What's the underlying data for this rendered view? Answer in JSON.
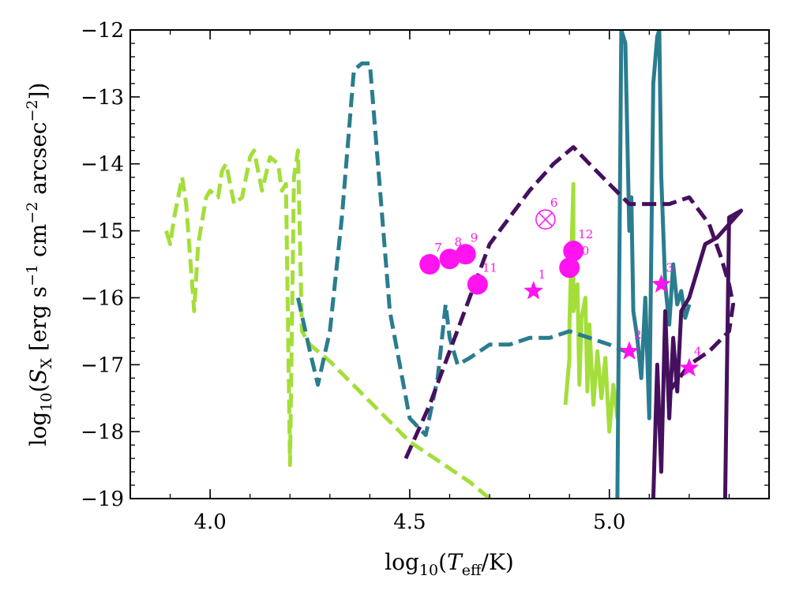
{
  "chart_data": {
    "type": "line",
    "xlabel": "log10(Teff/K)",
    "ylabel": "log10(SX [erg s−1 cm−2 arcsec−2])",
    "xlim": [
      3.8,
      5.4
    ],
    "ylim": [
      -19,
      -12
    ],
    "xticks": [
      {
        "value": 4.0,
        "label": "4.0"
      },
      {
        "value": 4.5,
        "label": "4.5"
      },
      {
        "value": 5.0,
        "label": "5.0"
      }
    ],
    "yticks": [
      {
        "value": -12,
        "label": "−12"
      },
      {
        "value": -13,
        "label": "−13"
      },
      {
        "value": -14,
        "label": "−14"
      },
      {
        "value": -15,
        "label": "−15"
      },
      {
        "value": -16,
        "label": "−16"
      },
      {
        "value": -17,
        "label": "−17"
      },
      {
        "value": -18,
        "label": "−18"
      },
      {
        "value": -19,
        "label": "−19"
      }
    ],
    "colors": {
      "lime": "#a4de3a",
      "teal": "#2a7d8e",
      "purple": "#45105e",
      "magenta": "#ff14f0"
    },
    "series": [
      {
        "name": "lime-dashed",
        "color": "#a4de3a",
        "style": "dashed",
        "points": [
          [
            3.89,
            -15.0
          ],
          [
            3.9,
            -15.2
          ],
          [
            3.91,
            -14.8
          ],
          [
            3.92,
            -14.5
          ],
          [
            3.93,
            -14.2
          ],
          [
            3.94,
            -14.6
          ],
          [
            3.96,
            -16.2
          ],
          [
            3.97,
            -15.2
          ],
          [
            3.99,
            -14.5
          ],
          [
            4.0,
            -14.4
          ],
          [
            4.02,
            -14.5
          ],
          [
            4.03,
            -14.1
          ],
          [
            4.04,
            -14.0
          ],
          [
            4.06,
            -14.6
          ],
          [
            4.08,
            -14.5
          ],
          [
            4.1,
            -13.9
          ],
          [
            4.11,
            -13.8
          ],
          [
            4.13,
            -14.4
          ],
          [
            4.15,
            -13.9
          ],
          [
            4.17,
            -14.0
          ],
          [
            4.18,
            -14.4
          ],
          [
            4.19,
            -14.3
          ],
          [
            4.2,
            -18.5
          ],
          [
            4.21,
            -14.2
          ],
          [
            4.22,
            -13.8
          ],
          [
            4.23,
            -16.5
          ],
          [
            4.25,
            -16.7
          ],
          [
            4.3,
            -16.95
          ],
          [
            4.35,
            -17.25
          ],
          [
            4.4,
            -17.55
          ],
          [
            4.45,
            -17.85
          ],
          [
            4.5,
            -18.15
          ],
          [
            4.55,
            -18.35
          ],
          [
            4.6,
            -18.55
          ],
          [
            4.65,
            -18.75
          ],
          [
            4.7,
            -19.0
          ]
        ]
      },
      {
        "name": "lime-solid",
        "color": "#a4de3a",
        "style": "solid",
        "points": [
          [
            4.89,
            -17.6
          ],
          [
            4.9,
            -16.9
          ],
          [
            4.9,
            -16.4
          ],
          [
            4.91,
            -14.3
          ],
          [
            4.91,
            -16.2
          ],
          [
            4.92,
            -15.8
          ],
          [
            4.925,
            -17.3
          ],
          [
            4.93,
            -16.3
          ],
          [
            4.94,
            -16.0
          ],
          [
            4.945,
            -17.4
          ],
          [
            4.95,
            -16.4
          ],
          [
            4.96,
            -17.6
          ],
          [
            4.97,
            -16.8
          ],
          [
            4.98,
            -17.5
          ],
          [
            4.99,
            -16.9
          ],
          [
            5.0,
            -18.0
          ],
          [
            5.01,
            -17.3
          ],
          [
            5.02,
            -17.8
          ]
        ]
      },
      {
        "name": "teal-dashed",
        "color": "#2a7d8e",
        "style": "dashed",
        "points": [
          [
            4.22,
            -16.0
          ],
          [
            4.25,
            -16.8
          ],
          [
            4.27,
            -17.3
          ],
          [
            4.3,
            -16.5
          ],
          [
            4.33,
            -14.8
          ],
          [
            4.36,
            -12.6
          ],
          [
            4.38,
            -12.5
          ],
          [
            4.4,
            -12.5
          ],
          [
            4.45,
            -16.2
          ],
          [
            4.5,
            -17.8
          ],
          [
            4.54,
            -18.05
          ],
          [
            4.57,
            -17.2
          ],
          [
            4.59,
            -16.1
          ],
          [
            4.6,
            -16.6
          ],
          [
            4.62,
            -17.0
          ],
          [
            4.65,
            -16.9
          ],
          [
            4.7,
            -16.7
          ],
          [
            4.75,
            -16.7
          ],
          [
            4.8,
            -16.6
          ],
          [
            4.85,
            -16.6
          ],
          [
            4.9,
            -16.5
          ],
          [
            4.95,
            -16.6
          ],
          [
            5.0,
            -16.7
          ],
          [
            5.04,
            -16.8
          ],
          [
            5.07,
            -16.8
          ]
        ]
      },
      {
        "name": "teal-solid",
        "color": "#2a7d8e",
        "style": "solid",
        "points": [
          [
            5.02,
            -19.0
          ],
          [
            5.03,
            -12.0
          ],
          [
            5.04,
            -12.2
          ],
          [
            5.05,
            -15.0
          ],
          [
            5.055,
            -14.5
          ],
          [
            5.06,
            -16.2
          ],
          [
            5.07,
            -16.6
          ],
          [
            5.08,
            -17.2
          ],
          [
            5.09,
            -16.0
          ],
          [
            5.1,
            -17.8
          ],
          [
            5.11,
            -12.8
          ],
          [
            5.12,
            -12.1
          ],
          [
            5.125,
            -12.0
          ],
          [
            5.13,
            -14.2
          ],
          [
            5.14,
            -15.8
          ],
          [
            5.15,
            -16.4
          ],
          [
            5.16,
            -15.5
          ],
          [
            5.17,
            -16.1
          ],
          [
            5.18,
            -15.9
          ],
          [
            5.19,
            -16.3
          ],
          [
            5.2,
            -16.1
          ]
        ]
      },
      {
        "name": "purple-dashed",
        "color": "#45105e",
        "style": "dashed",
        "points": [
          [
            4.49,
            -18.4
          ],
          [
            4.55,
            -17.6
          ],
          [
            4.6,
            -16.8
          ],
          [
            4.7,
            -15.2
          ],
          [
            4.8,
            -14.4
          ],
          [
            4.86,
            -14.0
          ],
          [
            4.91,
            -13.75
          ],
          [
            4.95,
            -14.0
          ],
          [
            5.0,
            -14.3
          ],
          [
            5.05,
            -14.6
          ],
          [
            5.1,
            -14.6
          ],
          [
            5.15,
            -14.6
          ],
          [
            5.2,
            -14.5
          ],
          [
            5.25,
            -14.9
          ],
          [
            5.28,
            -15.4
          ],
          [
            5.3,
            -15.8
          ],
          [
            5.31,
            -16.1
          ],
          [
            5.3,
            -16.5
          ],
          [
            5.25,
            -16.8
          ],
          [
            5.2,
            -17.0
          ],
          [
            5.15,
            -17.4
          ]
        ]
      },
      {
        "name": "purple-solid",
        "color": "#45105e",
        "style": "solid",
        "points": [
          [
            5.11,
            -19.0
          ],
          [
            5.12,
            -17.0
          ],
          [
            5.13,
            -18.6
          ],
          [
            5.14,
            -16.2
          ],
          [
            5.15,
            -17.8
          ],
          [
            5.16,
            -16.6
          ],
          [
            5.17,
            -17.4
          ],
          [
            5.18,
            -16.2
          ],
          [
            5.2,
            -16.0
          ],
          [
            5.22,
            -15.6
          ],
          [
            5.24,
            -15.2
          ],
          [
            5.27,
            -15.1
          ],
          [
            5.3,
            -14.9
          ],
          [
            5.33,
            -14.7
          ],
          [
            5.3,
            -14.8
          ],
          [
            5.29,
            -19.0
          ]
        ]
      }
    ],
    "markers": [
      {
        "label": "1",
        "shape": "star",
        "x": 4.81,
        "y": -15.9
      },
      {
        "label": "2",
        "shape": "star",
        "x": 5.05,
        "y": -16.8
      },
      {
        "label": "3",
        "shape": "star",
        "x": 5.13,
        "y": -15.8
      },
      {
        "label": "4",
        "shape": "star",
        "x": 5.2,
        "y": -17.05
      },
      {
        "label": "6",
        "shape": "otimes",
        "x": 4.84,
        "y": -14.83
      },
      {
        "label": "7",
        "shape": "circle",
        "x": 4.55,
        "y": -15.5
      },
      {
        "label": "8",
        "shape": "circle",
        "x": 4.6,
        "y": -15.42
      },
      {
        "label": "9",
        "shape": "circle",
        "x": 4.64,
        "y": -15.35
      },
      {
        "label": "10",
        "shape": "circle",
        "x": 4.9,
        "y": -15.55
      },
      {
        "label": "11",
        "shape": "circle",
        "x": 4.67,
        "y": -15.8
      },
      {
        "label": "12",
        "shape": "circle",
        "x": 4.91,
        "y": -15.3
      }
    ]
  }
}
